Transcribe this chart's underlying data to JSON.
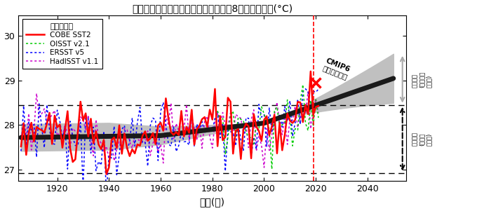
{
  "title": "観測と気候モデルによる北西太平洋の8月の海面水温(°C)",
  "xlabel": "時間(年)",
  "xlim": [
    1905,
    2055
  ],
  "ylim": [
    26.75,
    30.45
  ],
  "yticks": [
    27,
    28,
    29,
    30
  ],
  "xticks": [
    1920,
    1940,
    1960,
    1980,
    2000,
    2020,
    2040
  ],
  "obs_start_year": 1906,
  "obs_end_year": 2021,
  "oisst_start_year": 1982,
  "cmip6_end_year": 2050,
  "vertical_line_year": 2019,
  "cross_year": 2020,
  "cross_sst": 28.95,
  "dashed_line_upper": 28.45,
  "dashed_line_lower": 26.93,
  "legend_title": "観測データ",
  "cmip6_label_1": "CMIP6",
  "cmip6_label_2": "アンサンブル",
  "right_label_upper_1": "将来予測",
  "right_label_upper_2": "(気候変動",
  "right_label_upper_3": "予測値)",
  "right_label_lower_1": "過去再現",
  "right_label_lower_2": "(温暖化",
  "right_label_lower_3": "影響量)",
  "background_color": "#ffffff",
  "cmip6_mean_color": "#1a1a1a",
  "cmip6_shade_color": "#c0c0c0",
  "cobe_color": "#ff0000",
  "oisst_color": "#00cc00",
  "ersst_color": "#0000ff",
  "hadisst_color": "#cc00cc",
  "vline_color": "#ff0000",
  "arrow_upper_color": "#aaaaaa",
  "arrow_lower_color": "#000000"
}
